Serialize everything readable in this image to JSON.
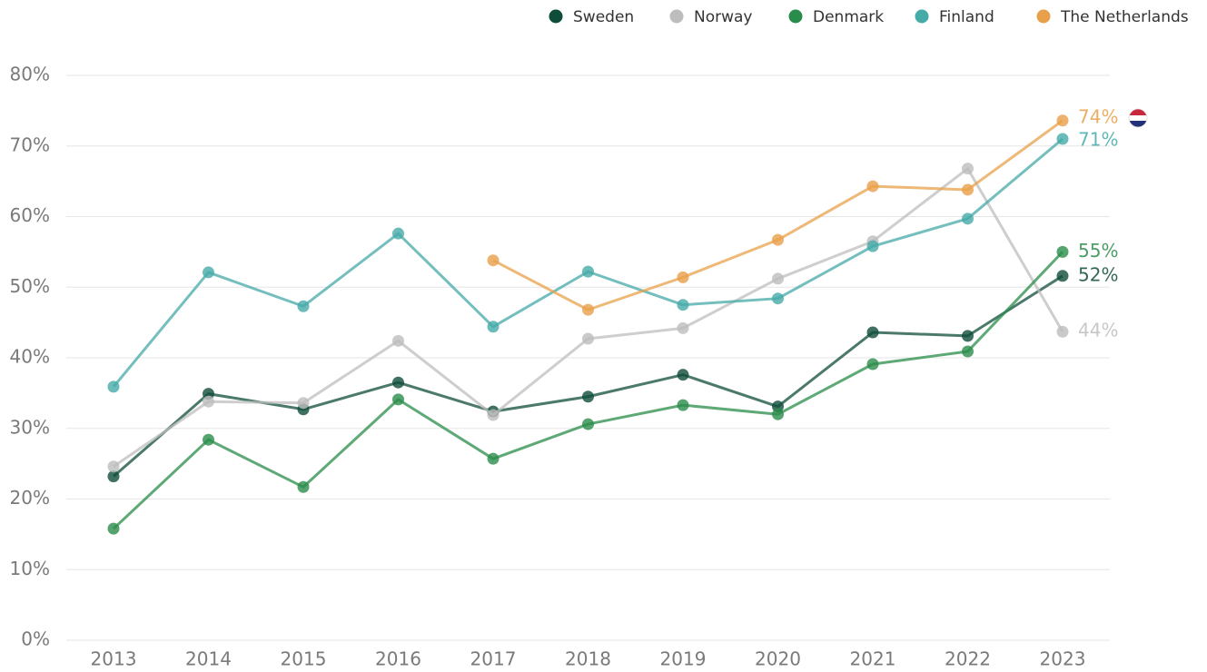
{
  "chart_data": {
    "type": "line",
    "categories": [
      "2013",
      "2014",
      "2015",
      "2016",
      "2017",
      "2018",
      "2019",
      "2020",
      "2021",
      "2022",
      "2023"
    ],
    "series": [
      {
        "name": "Sweden",
        "color": "#0f4c3a",
        "values": [
          23.2,
          34.9,
          32.7,
          36.5,
          32.4,
          34.5,
          37.6,
          33.1,
          43.6,
          43.1,
          51.6
        ],
        "value_labels": [
          null,
          null,
          null,
          null,
          null,
          null,
          null,
          null,
          null,
          null,
          "52%"
        ]
      },
      {
        "name": "Norway",
        "color": "#bdbdbd",
        "values": [
          24.6,
          33.8,
          33.6,
          42.4,
          31.9,
          42.7,
          44.2,
          51.2,
          56.5,
          66.8,
          43.7
        ],
        "value_labels": [
          null,
          null,
          null,
          null,
          null,
          null,
          null,
          null,
          null,
          null,
          "44%"
        ]
      },
      {
        "name": "Denmark",
        "color": "#2a8c4a",
        "values": [
          15.8,
          28.4,
          21.7,
          34.1,
          25.7,
          30.6,
          33.3,
          32.0,
          39.1,
          40.9,
          55.0
        ],
        "value_labels": [
          null,
          null,
          null,
          null,
          null,
          null,
          null,
          null,
          null,
          null,
          "55%"
        ]
      },
      {
        "name": "Finland",
        "color": "#45aaa8",
        "values": [
          35.9,
          52.1,
          47.3,
          57.6,
          44.4,
          52.2,
          47.5,
          48.4,
          55.8,
          59.7,
          71.0
        ],
        "value_labels": [
          null,
          null,
          null,
          null,
          null,
          null,
          null,
          null,
          null,
          null,
          "71%"
        ]
      },
      {
        "name": "The Netherlands",
        "color": "#e8a04a",
        "values": [
          null,
          null,
          null,
          null,
          53.8,
          46.8,
          51.4,
          56.7,
          64.3,
          63.8,
          73.6
        ],
        "value_labels": [
          null,
          null,
          null,
          null,
          null,
          null,
          null,
          null,
          null,
          null,
          "74%"
        ]
      }
    ],
    "ylim": [
      0,
      80
    ],
    "yticks": [
      {
        "value": 0,
        "label": "0%"
      },
      {
        "value": 10,
        "label": "10%"
      },
      {
        "value": 20,
        "label": "20%"
      },
      {
        "value": 30,
        "label": "30%"
      },
      {
        "value": 40,
        "label": "40%"
      },
      {
        "value": 50,
        "label": "50%"
      },
      {
        "value": 60,
        "label": "60%"
      },
      {
        "value": 70,
        "label": "70%"
      },
      {
        "value": 80,
        "label": "80%"
      }
    ],
    "grid": true,
    "legend": "top-right"
  }
}
